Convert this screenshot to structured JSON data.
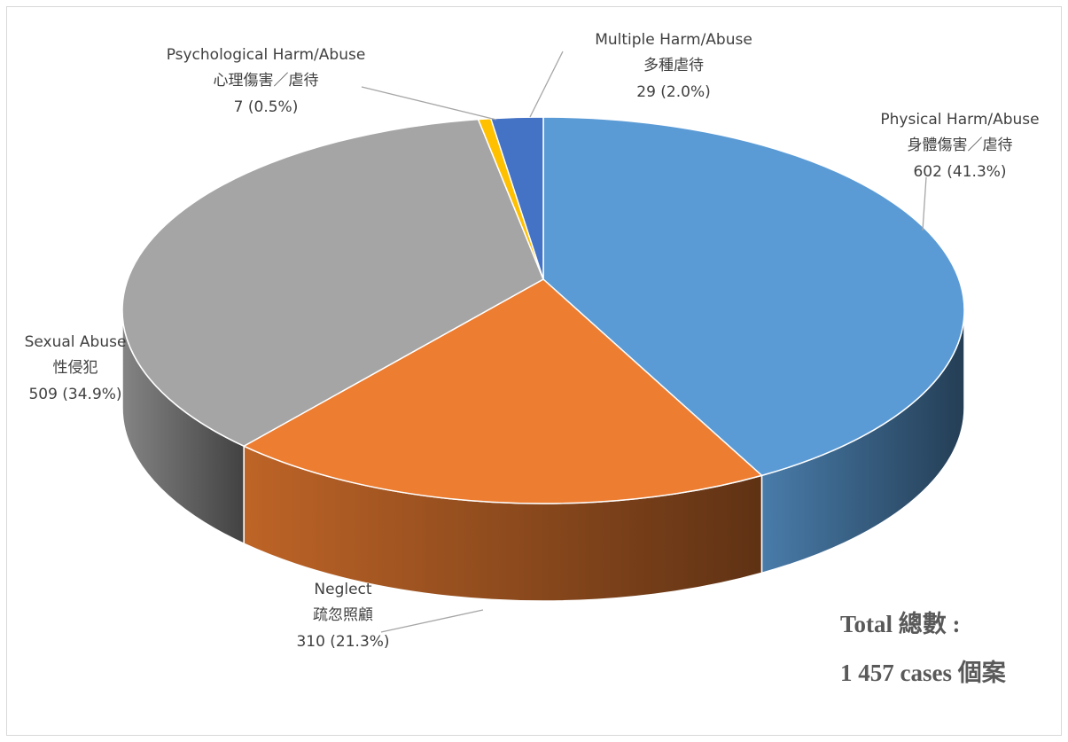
{
  "chart_data": {
    "type": "pie",
    "categories": [
      "Physical Harm/Abuse",
      "Neglect",
      "Sexual Abuse",
      "Psychological Harm/Abuse",
      "Multiple Harm/Abuse"
    ],
    "categories_zh": [
      "身體傷害／虐待",
      "疏忽照顧",
      "性侵犯",
      "心理傷害／虐待",
      "多種虐待"
    ],
    "values": [
      602,
      310,
      509,
      7,
      29
    ],
    "value_labels": [
      "602 (41.3%)",
      "310 (21.3%)",
      "509 (34.9%)",
      "7 (0.5%)",
      "29 (2.0%)"
    ],
    "colors": [
      "#5b9bd5",
      "#ed7d31",
      "#a5a5a5",
      "#ffc000",
      "#4472c4"
    ],
    "annotations": [
      "Total  總數 :",
      "1 457 cases  個案"
    ]
  }
}
